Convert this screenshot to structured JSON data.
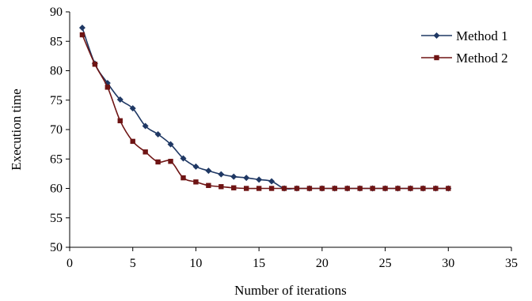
{
  "chart_data": {
    "type": "line",
    "xlabel": "Number of iterations",
    "ylabel": "Execution time",
    "xlim": [
      0,
      35
    ],
    "ylim": [
      50,
      90
    ],
    "x_ticks": [
      0,
      5,
      10,
      15,
      20,
      25,
      30,
      35
    ],
    "y_ticks": [
      50,
      55,
      60,
      65,
      70,
      75,
      80,
      85,
      90
    ],
    "grid": false,
    "legend_position": "top-right",
    "x": [
      1,
      2,
      3,
      4,
      5,
      6,
      7,
      8,
      9,
      10,
      11,
      12,
      13,
      14,
      15,
      16,
      17,
      18,
      19,
      20,
      21,
      22,
      23,
      24,
      25,
      26,
      27,
      28,
      29,
      30
    ],
    "series": [
      {
        "name": "Method 1",
        "color": "#1f3864",
        "marker": "diamond",
        "values": [
          87.3,
          81.2,
          77.9,
          75.1,
          73.6,
          70.6,
          69.2,
          67.5,
          65.1,
          63.7,
          63.0,
          62.4,
          62.0,
          61.8,
          61.5,
          61.2,
          60.0,
          60.0,
          60.0,
          60.0,
          60.0,
          60.0,
          60.0,
          60.0,
          60.0,
          60.0,
          60.0,
          60.0,
          60.0,
          60.0
        ]
      },
      {
        "name": "Method 2",
        "color": "#6e1414",
        "marker": "square",
        "values": [
          86.1,
          81.1,
          77.2,
          71.5,
          68.0,
          66.2,
          64.5,
          64.6,
          61.8,
          61.1,
          60.5,
          60.3,
          60.1,
          60.0,
          60.0,
          60.0,
          60.0,
          60.0,
          60.0,
          60.0,
          60.0,
          60.0,
          60.0,
          60.0,
          60.0,
          60.0,
          60.0,
          60.0,
          60.0,
          60.0
        ]
      }
    ]
  }
}
